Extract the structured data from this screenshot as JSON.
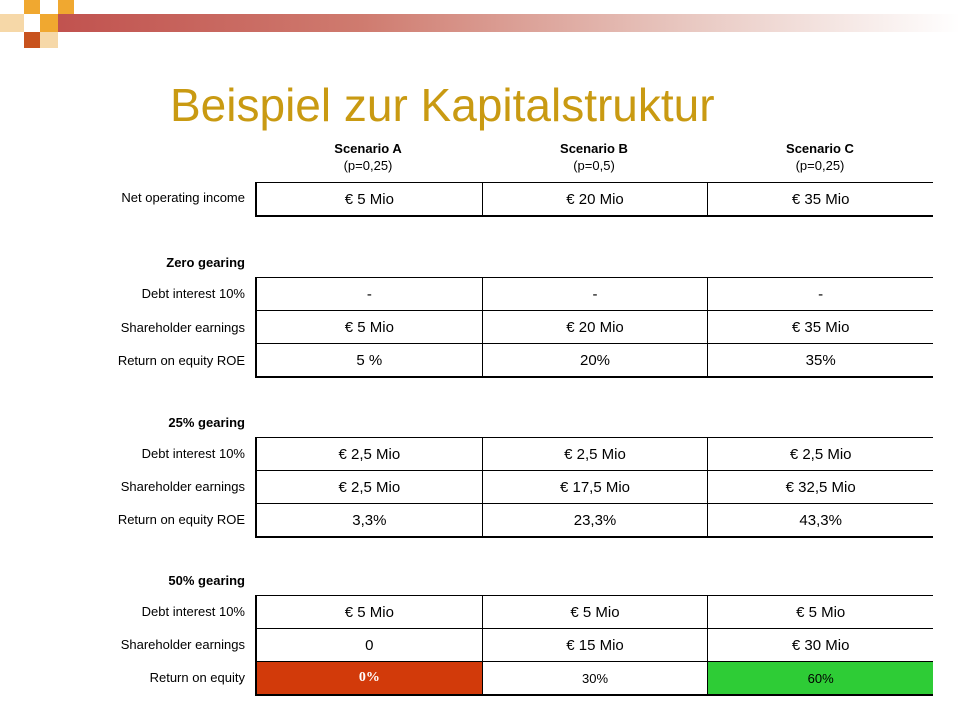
{
  "slide": {
    "title": "Beispiel zur Kapitalstruktur",
    "colors": {
      "title": "#c99a12",
      "header_bar": "#c0504d",
      "negative_highlight": "#d23a0a",
      "positive_highlight": "#2ecc36"
    }
  },
  "columns": [
    {
      "name": "Scenario A",
      "prob": "(p=0,25)"
    },
    {
      "name": "Scenario B",
      "prob": "(p=0,5)"
    },
    {
      "name": "Scenario C",
      "prob": "(p=0,25)"
    }
  ],
  "noi": {
    "label": "Net operating income",
    "values": [
      "€ 5 Mio",
      "€ 20 Mio",
      "€ 35 Mio"
    ]
  },
  "sections": [
    {
      "title": "Zero gearing",
      "rows": [
        {
          "label": "Debt interest 10%",
          "values": [
            "-",
            "-",
            "-"
          ]
        },
        {
          "label": "Shareholder earnings",
          "values": [
            "€ 5 Mio",
            "€ 20 Mio",
            "€ 35 Mio"
          ]
        },
        {
          "label": "Return on equity ROE",
          "values": [
            "5 %",
            "20%",
            "35%"
          ]
        }
      ]
    },
    {
      "title": "25% gearing",
      "rows": [
        {
          "label": "Debt interest 10%",
          "values": [
            "€ 2,5 Mio",
            "€ 2,5 Mio",
            "€ 2,5 Mio"
          ]
        },
        {
          "label": "Shareholder earnings",
          "values": [
            "€ 2,5 Mio",
            "€ 17,5 Mio",
            "€ 32,5 Mio"
          ]
        },
        {
          "label": "Return on equity ROE",
          "values": [
            "3,3%",
            "23,3%",
            "43,3%"
          ]
        }
      ]
    },
    {
      "title": "50% gearing",
      "rows": [
        {
          "label": "Debt interest 10%",
          "values": [
            "€ 5 Mio",
            "€ 5 Mio",
            "€ 5 Mio"
          ]
        },
        {
          "label": "Shareholder earnings",
          "values": [
            "0",
            "€ 15 Mio",
            "€ 30 Mio"
          ]
        },
        {
          "label": "Return on equity",
          "values": [
            "0%",
            "30%",
            "60%"
          ]
        }
      ]
    }
  ]
}
